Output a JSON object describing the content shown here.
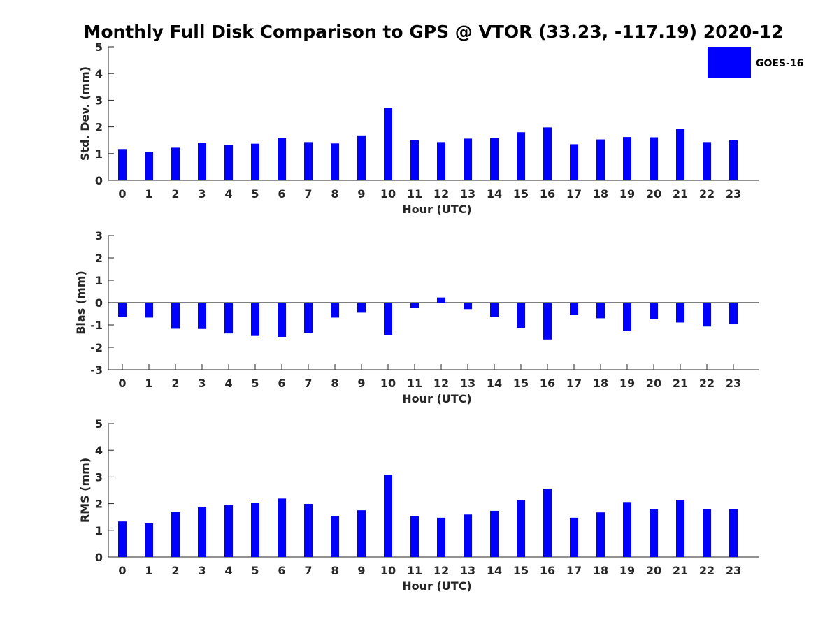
{
  "title": "Monthly Full Disk Comparison to GPS @ VTOR (33.23, -117.19) 2020-12",
  "legend": {
    "label": "GOES-16",
    "color": "#0000ff",
    "placement": "top-right"
  },
  "chart_data": [
    {
      "type": "bar",
      "ylabel": "Std. Dev. (mm)",
      "xlabel": "Hour (UTC)",
      "ylim": [
        0,
        5
      ],
      "yticks": [
        0,
        1,
        2,
        3,
        4,
        5
      ],
      "categories": [
        "0",
        "1",
        "2",
        "3",
        "4",
        "5",
        "6",
        "7",
        "8",
        "9",
        "10",
        "11",
        "12",
        "13",
        "14",
        "15",
        "16",
        "17",
        "18",
        "19",
        "20",
        "21",
        "22",
        "23"
      ],
      "series": [
        {
          "name": "GOES-16",
          "color": "#0000ff",
          "values": [
            1.17,
            1.07,
            1.22,
            1.4,
            1.32,
            1.37,
            1.58,
            1.43,
            1.38,
            1.68,
            2.71,
            1.5,
            1.43,
            1.56,
            1.58,
            1.8,
            1.98,
            1.35,
            1.53,
            1.62,
            1.61,
            1.93,
            1.43,
            1.5
          ]
        }
      ],
      "grid": false
    },
    {
      "type": "bar",
      "ylabel": "Bias (mm)",
      "xlabel": "Hour (UTC)",
      "ylim": [
        -3,
        3
      ],
      "yticks": [
        -3,
        -2,
        -1,
        0,
        1,
        2,
        3
      ],
      "categories": [
        "0",
        "1",
        "2",
        "3",
        "4",
        "5",
        "6",
        "7",
        "8",
        "9",
        "10",
        "11",
        "12",
        "13",
        "14",
        "15",
        "16",
        "17",
        "18",
        "19",
        "20",
        "21",
        "22",
        "23"
      ],
      "series": [
        {
          "name": "GOES-16",
          "color": "#0000ff",
          "values": [
            -0.63,
            -0.67,
            -1.17,
            -1.18,
            -1.38,
            -1.49,
            -1.53,
            -1.35,
            -0.67,
            -0.45,
            -1.45,
            -0.22,
            0.23,
            -0.29,
            -0.63,
            -1.13,
            -1.65,
            -0.55,
            -0.7,
            -1.25,
            -0.73,
            -0.89,
            -1.07,
            -0.97
          ]
        }
      ],
      "grid": false
    },
    {
      "type": "bar",
      "ylabel": "RMS (mm)",
      "xlabel": "Hour (UTC)",
      "ylim": [
        0,
        5
      ],
      "yticks": [
        0,
        1,
        2,
        3,
        4,
        5
      ],
      "categories": [
        "0",
        "1",
        "2",
        "3",
        "4",
        "5",
        "6",
        "7",
        "8",
        "9",
        "10",
        "11",
        "12",
        "13",
        "14",
        "15",
        "16",
        "17",
        "18",
        "19",
        "20",
        "21",
        "22",
        "23"
      ],
      "series": [
        {
          "name": "GOES-16",
          "color": "#0000ff",
          "values": [
            1.33,
            1.26,
            1.7,
            1.86,
            1.94,
            2.04,
            2.19,
            1.99,
            1.54,
            1.75,
            3.08,
            1.52,
            1.47,
            1.59,
            1.73,
            2.12,
            2.56,
            1.47,
            1.67,
            2.06,
            1.78,
            2.12,
            1.8,
            1.8
          ]
        }
      ],
      "grid": false
    }
  ]
}
